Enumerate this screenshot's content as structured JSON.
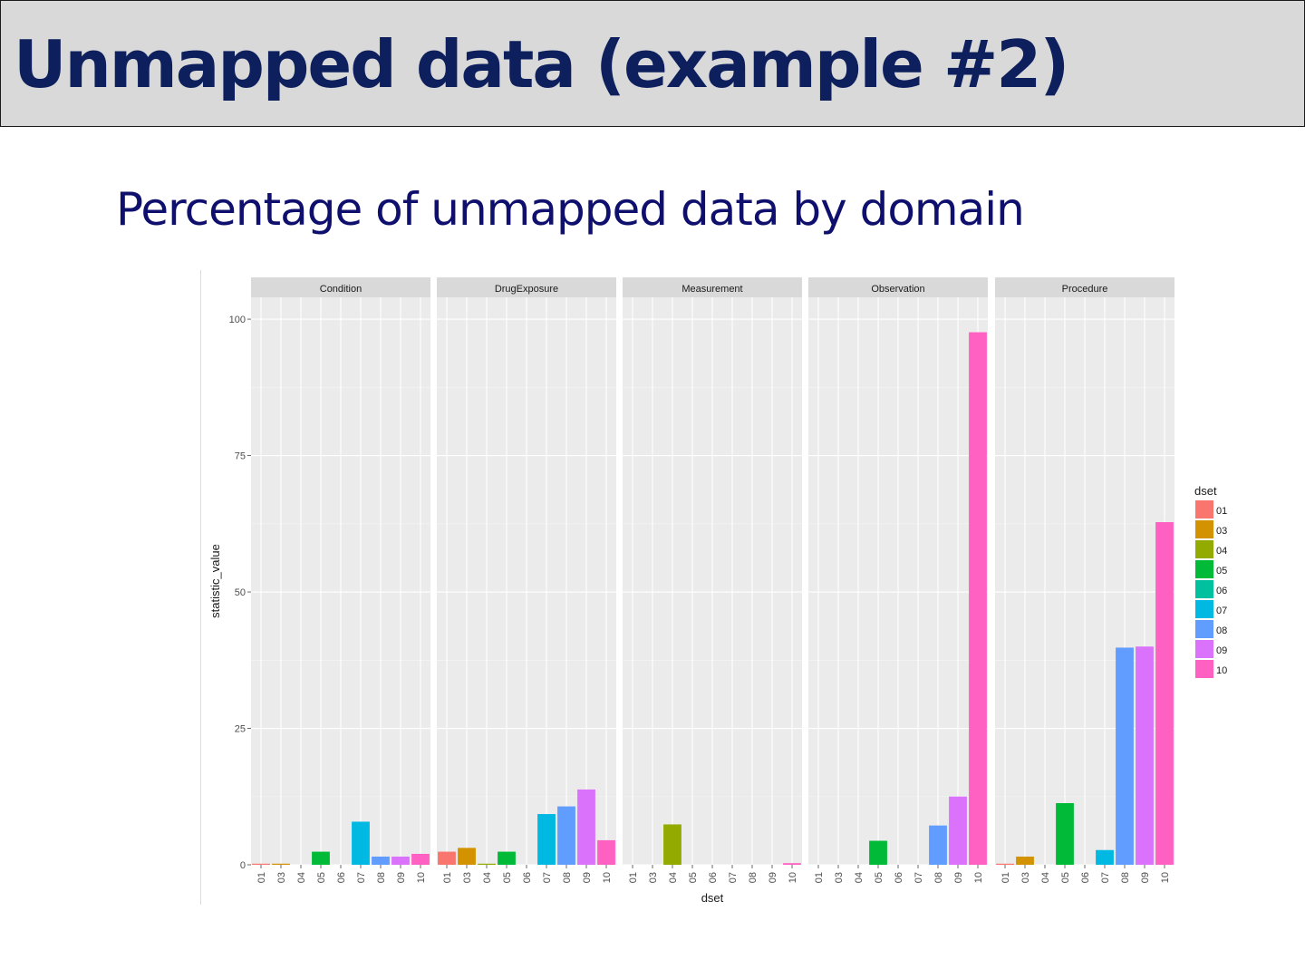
{
  "slide": {
    "title": "Unmapped data (example #2)",
    "subtitle": "Percentage of unmapped data by domain"
  },
  "chart_data": {
    "type": "bar",
    "facet_by": "domain",
    "xlabel": "dset",
    "ylabel": "statistic_value",
    "ylim": [
      0,
      104
    ],
    "yticks": [
      0,
      25,
      50,
      75,
      100
    ],
    "grid": true,
    "categories": [
      "01",
      "03",
      "04",
      "05",
      "06",
      "07",
      "08",
      "09",
      "10"
    ],
    "colors": {
      "01": "#F8766D",
      "03": "#D39200",
      "04": "#93AA00",
      "05": "#00BA38",
      "06": "#00C19F",
      "07": "#00B9E3",
      "08": "#619CFF",
      "09": "#DB72FB",
      "10": "#FF61C3"
    },
    "legend": {
      "title": "dset",
      "position": "right",
      "entries": [
        "01",
        "03",
        "04",
        "05",
        "06",
        "07",
        "08",
        "09",
        "10"
      ]
    },
    "facets": [
      {
        "name": "Condition",
        "values": {
          "01": 0.2,
          "03": 0.2,
          "04": 0,
          "05": 2.4,
          "06": 0,
          "07": 7.9,
          "08": 1.5,
          "09": 1.5,
          "10": 2.0
        }
      },
      {
        "name": "DrugExposure",
        "values": {
          "01": 2.4,
          "03": 3.1,
          "04": 0.2,
          "05": 2.4,
          "06": 0,
          "07": 9.3,
          "08": 10.7,
          "09": 13.8,
          "10": 4.5
        }
      },
      {
        "name": "Measurement",
        "values": {
          "01": 0,
          "03": 0,
          "04": 7.4,
          "05": 0,
          "06": 0,
          "07": 0,
          "08": 0,
          "09": 0,
          "10": 0.3
        }
      },
      {
        "name": "Observation",
        "values": {
          "01": 0,
          "03": 0,
          "04": 0,
          "05": 4.4,
          "06": 0,
          "07": 0,
          "08": 7.2,
          "09": 12.5,
          "10": 97.6
        }
      },
      {
        "name": "Procedure",
        "values": {
          "01": 0.2,
          "03": 1.5,
          "04": 0,
          "05": 11.3,
          "06": 0,
          "07": 2.7,
          "08": 39.8,
          "09": 40.0,
          "10": 62.8
        }
      }
    ]
  }
}
